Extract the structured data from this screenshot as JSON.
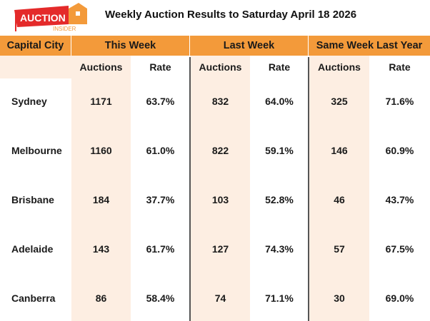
{
  "logo": {
    "text_main": "AUCTION",
    "text_sub": "INSIDER",
    "colors": {
      "red": "#e42a2a",
      "orange": "#f39a3a"
    }
  },
  "title": "Weekly Auction Results to Saturday April 18 2026",
  "headers": {
    "city": "Capital City",
    "this_week": "This Week",
    "last_week": "Last Week",
    "same_week_last_year": "Same Week Last Year"
  },
  "subheaders": [
    "Auctions",
    "Rate",
    "Auctions",
    "Rate",
    "Auctions",
    "Rate"
  ],
  "rows": [
    {
      "city": "Sydney",
      "values": [
        "1171",
        "63.7%",
        "832",
        "64.0%",
        "325",
        "71.6%"
      ]
    },
    {
      "city": "Melbourne",
      "values": [
        "1160",
        "61.0%",
        "822",
        "59.1%",
        "146",
        "60.9%"
      ]
    },
    {
      "city": "Brisbane",
      "values": [
        "184",
        "37.7%",
        "103",
        "52.8%",
        "46",
        "43.7%"
      ]
    },
    {
      "city": "Adelaide",
      "values": [
        "143",
        "61.7%",
        "127",
        "74.3%",
        "57",
        "67.5%"
      ]
    },
    {
      "city": "Canberra",
      "values": [
        "86",
        "58.4%",
        "74",
        "71.1%",
        "30",
        "69.0%"
      ]
    }
  ],
  "colors": {
    "header": "#f39a3a",
    "shade": "#fdeee2"
  }
}
